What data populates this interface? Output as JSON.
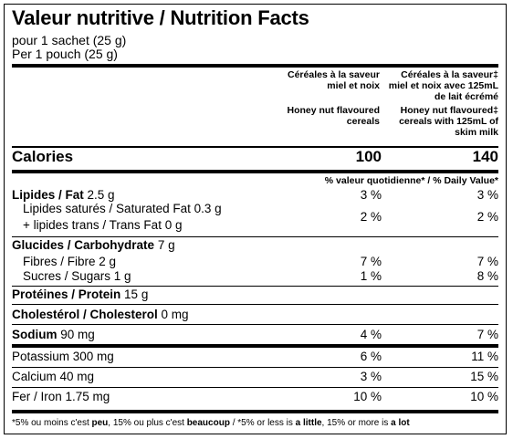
{
  "title": "Valeur nutritive / Nutrition Facts",
  "serving_fr": "pour 1 sachet (25 g)",
  "serving_en": "Per 1 pouch (25 g)",
  "columns": {
    "col1_fr": "Céréales à la saveur miel et noix",
    "col1_en": "Honey nut flavoured cereals",
    "col2_fr": "Céréales à la saveur‡ miel et noix avec 125mL de lait écrémé",
    "col2_en": "Honey nut flavoured‡ cereals with 125mL of skim milk"
  },
  "calories": {
    "label": "Calories",
    "v1": "100",
    "v2": "140"
  },
  "dv_header": "% valeur quotidienne* / % Daily Value*",
  "nutrients": {
    "fat": {
      "name": "Lipides / Fat",
      "amount": "2.5 g",
      "v1": "3 %",
      "v2": "3 %"
    },
    "satfat": {
      "name": "Lipides saturés / Saturated Fat 0.3 g",
      "v1": "2 %",
      "v2": "2 %"
    },
    "transfat": {
      "name": "+ lipides trans / Trans Fat 0 g"
    },
    "carb": {
      "name": "Glucides / Carbohydrate",
      "amount": "7 g"
    },
    "fibre": {
      "name": "Fibres / Fibre 2 g",
      "v1": "7 %",
      "v2": "7 %"
    },
    "sugars": {
      "name": "Sucres / Sugars 1 g",
      "v1": "1 %",
      "v2": "8 %"
    },
    "protein": {
      "name": "Protéines / Protein",
      "amount": "15 g"
    },
    "cholesterol": {
      "name": "Cholestérol / Cholesterol",
      "amount": "0 mg"
    },
    "sodium": {
      "name": "Sodium",
      "amount": "90 mg",
      "v1": "4 %",
      "v2": "7 %"
    },
    "potassium": {
      "name": "Potassium 300 mg",
      "v1": "6 %",
      "v2": "11 %"
    },
    "calcium": {
      "name": "Calcium 40 mg",
      "v1": "3 %",
      "v2": "15 %"
    },
    "iron": {
      "name": "Fer / Iron 1.75 mg",
      "v1": "10 %",
      "v2": "10 %"
    }
  },
  "footnote": {
    "a": "*5% ou moins c'est ",
    "b": "peu",
    "c": ", 15% ou plus c'est ",
    "d": "beaucoup",
    "e": " / *5% or less is ",
    "f": "a little",
    "g": ", 15% or more is ",
    "h": "a lot"
  }
}
